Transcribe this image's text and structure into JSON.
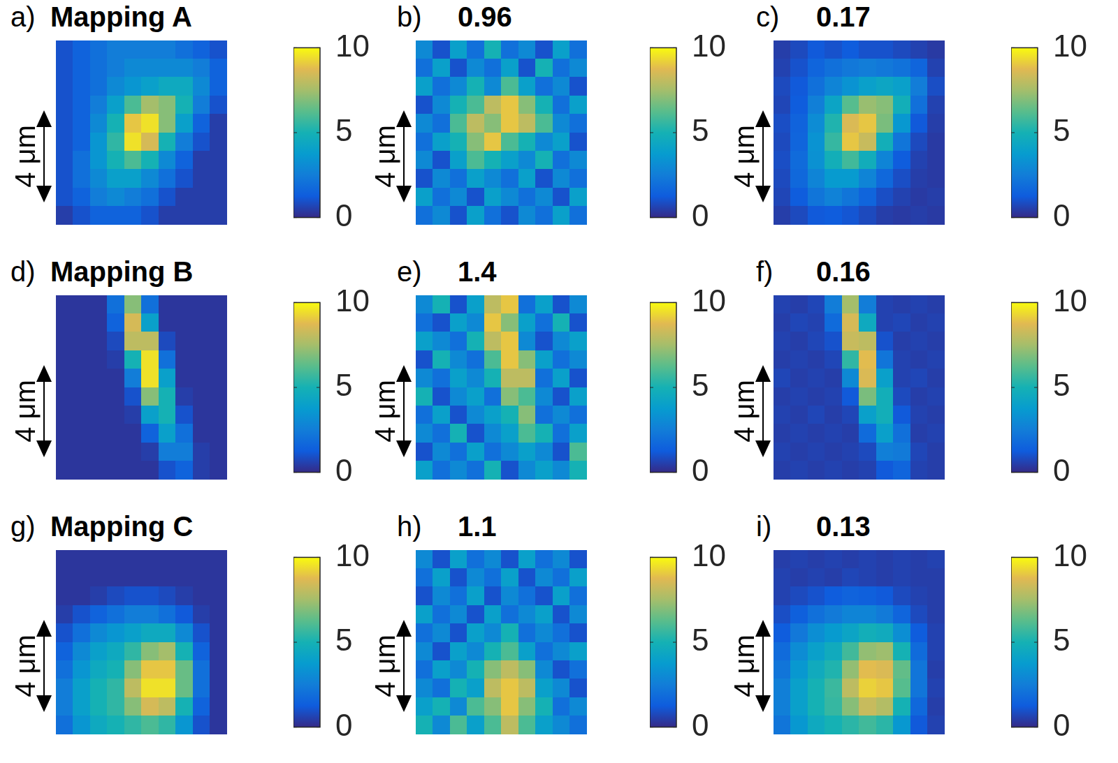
{
  "chart_data": [
    {
      "type": "heatmap",
      "panel_label": "a)",
      "title": "Mapping A",
      "scale_bar": "4 μm",
      "tick_labels": false,
      "colorbar": {
        "range": [
          0,
          10
        ],
        "ticks": [
          0,
          5,
          10
        ]
      },
      "cells": [
        [
          1,
          1.5,
          2,
          2.5,
          2.5,
          2.5,
          2.5,
          2,
          1.5,
          1
        ],
        [
          1,
          1.5,
          2,
          2.5,
          3,
          3,
          3,
          3,
          2.5,
          1.5
        ],
        [
          1,
          1.5,
          2,
          3,
          3.5,
          4,
          4.5,
          4.5,
          3,
          1.5
        ],
        [
          1,
          1.5,
          2.5,
          4,
          6,
          7.5,
          7,
          5,
          2.5,
          1
        ],
        [
          1,
          1.5,
          3,
          5,
          9,
          9.5,
          7,
          4,
          1.5,
          0.5
        ],
        [
          1,
          1.5,
          3.5,
          5.5,
          9.5,
          8.5,
          5,
          2.5,
          1,
          0.5
        ],
        [
          1,
          2,
          3.5,
          5,
          6,
          5,
          3,
          1.5,
          0.5,
          0.5
        ],
        [
          1,
          2,
          3,
          4,
          4,
          3,
          2,
          1,
          0.5,
          0.5
        ],
        [
          1,
          1.5,
          2.5,
          3,
          2.5,
          2,
          1,
          0.5,
          0.5,
          0.5
        ],
        [
          0.5,
          1,
          1.5,
          1.5,
          1.5,
          1,
          0.5,
          0.5,
          0.5,
          0.5
        ]
      ]
    },
    {
      "type": "heatmap",
      "panel_label": "b)",
      "title": "0.96",
      "scale_bar": "4 μm",
      "tick_labels": false,
      "colorbar": {
        "range": [
          0,
          10
        ],
        "ticks": [
          0,
          5,
          10
        ]
      },
      "cells": [
        [
          3,
          1,
          4,
          2,
          5,
          2,
          3,
          1,
          4,
          2
        ],
        [
          2,
          4,
          1,
          3,
          2,
          4,
          1,
          5,
          2,
          3
        ],
        [
          4,
          2,
          3,
          5,
          3,
          6,
          4,
          2,
          3,
          1
        ],
        [
          1,
          3,
          5,
          6,
          8,
          9,
          7,
          5,
          2,
          4
        ],
        [
          3,
          2,
          6,
          8,
          7,
          9,
          8,
          6,
          3,
          2
        ],
        [
          2,
          4,
          5,
          7,
          9,
          6,
          5,
          3,
          4,
          1
        ],
        [
          3,
          1,
          4,
          6,
          5,
          4,
          3,
          5,
          2,
          3
        ],
        [
          1,
          3,
          2,
          4,
          3,
          2,
          4,
          1,
          3,
          2
        ],
        [
          4,
          2,
          3,
          1,
          4,
          3,
          2,
          3,
          1,
          4
        ],
        [
          2,
          3,
          1,
          4,
          2,
          1,
          3,
          2,
          4,
          2
        ]
      ]
    },
    {
      "type": "heatmap",
      "panel_label": "c)",
      "title": "0.17",
      "scale_bar": "4 μm",
      "tick_labels": false,
      "colorbar": {
        "range": [
          0,
          10
        ],
        "ticks": [
          0,
          5,
          10
        ]
      },
      "cells": [
        [
          0.5,
          0.8,
          1.2,
          1,
          1.3,
          1,
          1,
          0.8,
          0.6,
          0.4
        ],
        [
          0.6,
          1,
          1.6,
          2,
          2.3,
          2.5,
          2.3,
          2.1,
          1.6,
          0.6
        ],
        [
          0.8,
          1.2,
          2,
          2.8,
          3.4,
          4,
          4.3,
          4,
          2.5,
          0.9
        ],
        [
          0.7,
          1.3,
          2.6,
          4.2,
          6.2,
          7.3,
          7,
          4.8,
          2,
          0.6
        ],
        [
          0.9,
          1.5,
          3.1,
          5.2,
          8.6,
          9,
          6.8,
          3.6,
          1.2,
          0.5
        ],
        [
          0.8,
          1.6,
          3.4,
          5.6,
          9,
          8.2,
          4.8,
          2.2,
          0.8,
          0.4
        ],
        [
          0.9,
          1.8,
          3.3,
          4.8,
          5.8,
          4.7,
          2.8,
          1.3,
          0.6,
          0.4
        ],
        [
          0.8,
          1.7,
          2.8,
          3.7,
          3.7,
          2.8,
          1.7,
          0.9,
          0.5,
          0.4
        ],
        [
          0.7,
          1.3,
          2.2,
          2.7,
          2.2,
          1.6,
          0.9,
          0.6,
          0.4,
          0.5
        ],
        [
          0.5,
          0.8,
          1.2,
          1.3,
          1.1,
          0.8,
          0.5,
          0.4,
          0.5,
          0.4
        ]
      ]
    },
    {
      "type": "heatmap",
      "panel_label": "d)",
      "title": "Mapping B",
      "scale_bar": "4 μm",
      "tick_labels": false,
      "colorbar": {
        "range": [
          0,
          10
        ],
        "ticks": [
          0,
          5,
          10
        ]
      },
      "cells": [
        [
          0.3,
          0.3,
          0.3,
          2,
          7,
          2,
          0.3,
          0.3,
          0.3,
          0.3
        ],
        [
          0.3,
          0.3,
          0.3,
          1.5,
          8.5,
          4,
          0.3,
          0.3,
          0.3,
          0.3
        ],
        [
          0.3,
          0.3,
          0.3,
          0.8,
          8,
          8,
          0.8,
          0.3,
          0.3,
          0.3
        ],
        [
          0.3,
          0.3,
          0.3,
          0.5,
          5,
          9.5,
          2,
          0.3,
          0.3,
          0.3
        ],
        [
          0.3,
          0.3,
          0.3,
          0.3,
          2.5,
          9.5,
          4,
          0.3,
          0.3,
          0.3
        ],
        [
          0.3,
          0.3,
          0.3,
          0.3,
          1,
          7,
          5,
          0.5,
          0.3,
          0.3
        ],
        [
          0.3,
          0.3,
          0.3,
          0.3,
          0.5,
          4,
          5,
          1,
          0.3,
          0.3
        ],
        [
          0.3,
          0.3,
          0.3,
          0.3,
          0.3,
          1.5,
          4,
          2,
          0.3,
          0.3
        ],
        [
          0.3,
          0.3,
          0.3,
          0.3,
          0.3,
          0.5,
          2.5,
          2.5,
          0.5,
          0.3
        ],
        [
          0.3,
          0.3,
          0.3,
          0.3,
          0.3,
          0.3,
          1,
          1.5,
          0.5,
          0.3
        ]
      ]
    },
    {
      "type": "heatmap",
      "panel_label": "e)",
      "title": "1.4",
      "scale_bar": "4 μm",
      "tick_labels": false,
      "colorbar": {
        "range": [
          0,
          10
        ],
        "ticks": [
          0,
          5,
          10
        ]
      },
      "cells": [
        [
          3,
          5,
          1,
          4,
          8,
          9,
          2,
          4,
          1,
          3
        ],
        [
          2,
          1,
          4,
          3,
          9,
          7,
          4,
          2,
          5,
          1
        ],
        [
          4,
          3,
          2,
          5,
          8,
          9,
          3,
          1,
          3,
          4
        ],
        [
          1,
          5,
          3,
          2,
          6,
          9,
          7,
          4,
          2,
          3
        ],
        [
          3,
          2,
          4,
          3,
          5,
          8,
          8,
          2,
          4,
          1
        ],
        [
          5,
          1,
          3,
          4,
          2,
          7,
          6,
          3,
          1,
          4
        ],
        [
          2,
          4,
          1,
          3,
          4,
          5,
          7,
          2,
          3,
          2
        ],
        [
          3,
          2,
          5,
          1,
          3,
          4,
          6,
          5,
          2,
          4
        ],
        [
          1,
          3,
          2,
          4,
          2,
          3,
          4,
          3,
          1,
          6
        ],
        [
          4,
          2,
          3,
          2,
          5,
          1,
          3,
          4,
          3,
          5
        ]
      ]
    },
    {
      "type": "heatmap",
      "panel_label": "f)",
      "title": "0.16",
      "scale_bar": "4 μm",
      "tick_labels": false,
      "colorbar": {
        "range": [
          0,
          10
        ],
        "ticks": [
          0,
          5,
          10
        ]
      },
      "cells": [
        [
          0.6,
          0.5,
          0.7,
          2.5,
          7.5,
          2.5,
          0.6,
          0.5,
          0.6,
          0.5
        ],
        [
          0.5,
          0.7,
          0.6,
          1.8,
          8.5,
          4.5,
          0.6,
          0.7,
          0.5,
          0.6
        ],
        [
          0.6,
          0.5,
          0.7,
          1,
          8.2,
          8,
          1,
          0.5,
          0.6,
          0.5
        ],
        [
          0.5,
          0.6,
          0.5,
          0.7,
          5.5,
          8.8,
          2.2,
          0.6,
          0.5,
          0.6
        ],
        [
          0.7,
          0.5,
          0.6,
          0.5,
          3,
          8.6,
          4,
          0.6,
          0.7,
          0.5
        ],
        [
          0.5,
          0.6,
          0.5,
          0.6,
          1.2,
          6.8,
          4.8,
          0.8,
          0.5,
          0.6
        ],
        [
          0.6,
          0.5,
          0.7,
          0.5,
          0.7,
          4,
          4.8,
          1.2,
          0.6,
          0.5
        ],
        [
          0.5,
          0.6,
          0.5,
          0.6,
          0.5,
          1.8,
          4,
          2,
          0.5,
          0.6
        ],
        [
          0.6,
          0.5,
          0.6,
          0.5,
          0.6,
          0.8,
          2.6,
          2.4,
          0.7,
          0.5
        ],
        [
          0.5,
          0.6,
          0.5,
          0.6,
          0.5,
          0.6,
          1.2,
          1.6,
          0.6,
          0.5
        ]
      ]
    },
    {
      "type": "heatmap",
      "panel_label": "g)",
      "title": "Mapping C",
      "scale_bar": "4 μm",
      "tick_labels": false,
      "colorbar": {
        "range": [
          0,
          10
        ],
        "ticks": [
          0,
          5,
          10
        ]
      },
      "cells": [
        [
          0.3,
          0.3,
          0.3,
          0.3,
          0.3,
          0.3,
          0.3,
          0.3,
          0.3,
          0.3
        ],
        [
          0.3,
          0.3,
          0.3,
          0.3,
          0.3,
          0.3,
          0.3,
          0.3,
          0.3,
          0.3
        ],
        [
          0.3,
          0.3,
          0.5,
          0.8,
          1,
          1,
          0.8,
          0.5,
          0.3,
          0.3
        ],
        [
          0.5,
          1,
          1.5,
          2,
          2.5,
          2.5,
          2,
          1.2,
          0.5,
          0.3
        ],
        [
          1,
          2,
          3,
          3.5,
          4,
          4.5,
          4.5,
          3,
          1,
          0.3
        ],
        [
          1.5,
          3,
          4,
          4.5,
          5.5,
          7,
          7.5,
          5,
          1.5,
          0.3
        ],
        [
          2,
          3.5,
          4.5,
          5,
          7,
          9,
          9,
          6.5,
          2,
          0.3
        ],
        [
          2.5,
          4,
          5,
          5.5,
          8,
          9.5,
          9.5,
          6.5,
          2,
          0.3
        ],
        [
          2.5,
          4,
          5,
          5.5,
          7,
          8.5,
          8,
          5,
          1.5,
          0.3
        ],
        [
          2,
          3.5,
          4.5,
          5,
          5.5,
          6,
          5.5,
          3.5,
          1,
          0.3
        ]
      ]
    },
    {
      "type": "heatmap",
      "panel_label": "h)",
      "title": "1.1",
      "scale_bar": "4 μm",
      "tick_labels": false,
      "colorbar": {
        "range": [
          0,
          10
        ],
        "ticks": [
          0,
          5,
          10
        ]
      },
      "cells": [
        [
          3,
          1,
          4,
          2,
          3,
          1,
          4,
          2,
          3,
          1
        ],
        [
          2,
          4,
          1,
          3,
          2,
          4,
          1,
          3,
          2,
          4
        ],
        [
          1,
          3,
          2,
          4,
          1,
          3,
          2,
          1,
          4,
          2
        ],
        [
          4,
          2,
          3,
          1,
          4,
          2,
          3,
          4,
          1,
          3
        ],
        [
          2,
          3,
          1,
          4,
          3,
          5,
          2,
          3,
          2,
          1
        ],
        [
          3,
          1,
          4,
          3,
          5,
          6,
          4,
          2,
          3,
          4
        ],
        [
          2,
          4,
          3,
          5,
          7,
          8,
          7,
          3,
          1,
          2
        ],
        [
          3,
          2,
          5,
          4,
          8,
          9,
          8,
          4,
          3,
          1
        ],
        [
          4,
          5,
          3,
          6,
          7,
          9,
          7,
          5,
          2,
          3
        ],
        [
          5,
          3,
          6,
          4,
          6,
          8,
          6,
          4,
          3,
          2
        ]
      ]
    },
    {
      "type": "heatmap",
      "panel_label": "i)",
      "title": "0.13",
      "scale_bar": "4 μm",
      "tick_labels": false,
      "colorbar": {
        "range": [
          0,
          10
        ],
        "ticks": [
          0,
          5,
          10
        ]
      },
      "cells": [
        [
          0.5,
          0.6,
          0.5,
          0.6,
          0.5,
          0.6,
          0.5,
          0.6,
          0.5,
          0.6
        ],
        [
          0.6,
          0.5,
          0.6,
          0.5,
          0.7,
          0.6,
          0.5,
          0.6,
          0.5,
          0.5
        ],
        [
          0.6,
          0.8,
          1,
          1.3,
          1.5,
          1.4,
          1.2,
          0.8,
          0.6,
          0.5
        ],
        [
          0.9,
          1.4,
          2,
          2.4,
          2.8,
          2.8,
          2.4,
          1.6,
          0.8,
          0.5
        ],
        [
          1.3,
          2.3,
          3.2,
          3.7,
          4.2,
          4.8,
          4.6,
          3.2,
          1.3,
          0.6
        ],
        [
          1.8,
          3.1,
          4,
          4.6,
          5.8,
          7.2,
          7.4,
          5,
          1.8,
          0.6
        ],
        [
          2.2,
          3.6,
          4.6,
          5.2,
          7.2,
          8.8,
          8.6,
          6.4,
          2.2,
          0.5
        ],
        [
          2.6,
          4,
          5,
          5.7,
          8,
          9.2,
          9,
          6.2,
          2.2,
          0.6
        ],
        [
          2.6,
          4,
          5,
          5.6,
          7,
          8.2,
          7.8,
          5,
          1.7,
          0.5
        ],
        [
          2.2,
          3.6,
          4.5,
          5,
          5.4,
          5.8,
          5.4,
          3.6,
          1.2,
          0.6
        ]
      ]
    }
  ]
}
